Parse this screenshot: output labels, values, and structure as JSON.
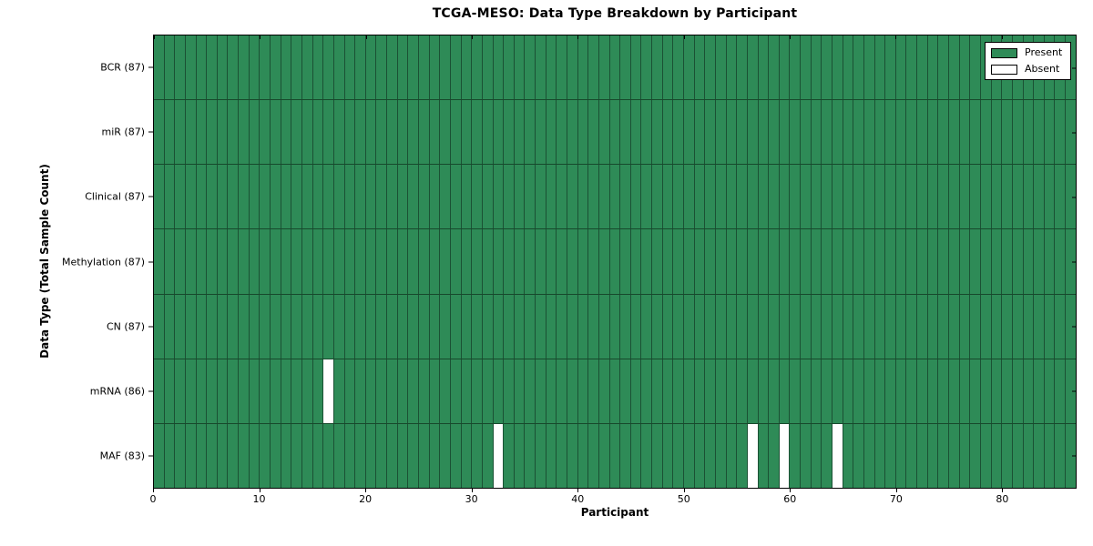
{
  "chart_data": {
    "type": "heatmap",
    "title": "TCGA-MESO: Data Type Breakdown by Participant",
    "xlabel": "Participant",
    "ylabel": "Data Type (Total Sample Count)",
    "xlim": [
      0,
      87
    ],
    "n_participants": 87,
    "x_ticks": [
      0,
      10,
      20,
      30,
      40,
      50,
      60,
      70,
      80
    ],
    "legend": {
      "present": "Present",
      "absent": "Absent"
    },
    "legend_position": "upper right",
    "colors": {
      "present": "#2e8b57",
      "absent": "#ffffff",
      "cell_edge": "#1b5134",
      "axis": "#000000",
      "background": "#ffffff"
    },
    "rows": [
      {
        "name": "bcr",
        "label": "BCR (87)",
        "total": 87,
        "absent_participants": []
      },
      {
        "name": "mir",
        "label": "miR (87)",
        "total": 87,
        "absent_participants": []
      },
      {
        "name": "clinical",
        "label": "Clinical (87)",
        "total": 87,
        "absent_participants": []
      },
      {
        "name": "methylation",
        "label": "Methylation (87)",
        "total": 87,
        "absent_participants": []
      },
      {
        "name": "cn",
        "label": "CN (87)",
        "total": 87,
        "absent_participants": []
      },
      {
        "name": "mrna",
        "label": "mRNA (86)",
        "total": 86,
        "absent_participants": [
          16
        ]
      },
      {
        "name": "maf",
        "label": "MAF (83)",
        "total": 83,
        "absent_participants": [
          32,
          56,
          59,
          64
        ]
      }
    ]
  }
}
